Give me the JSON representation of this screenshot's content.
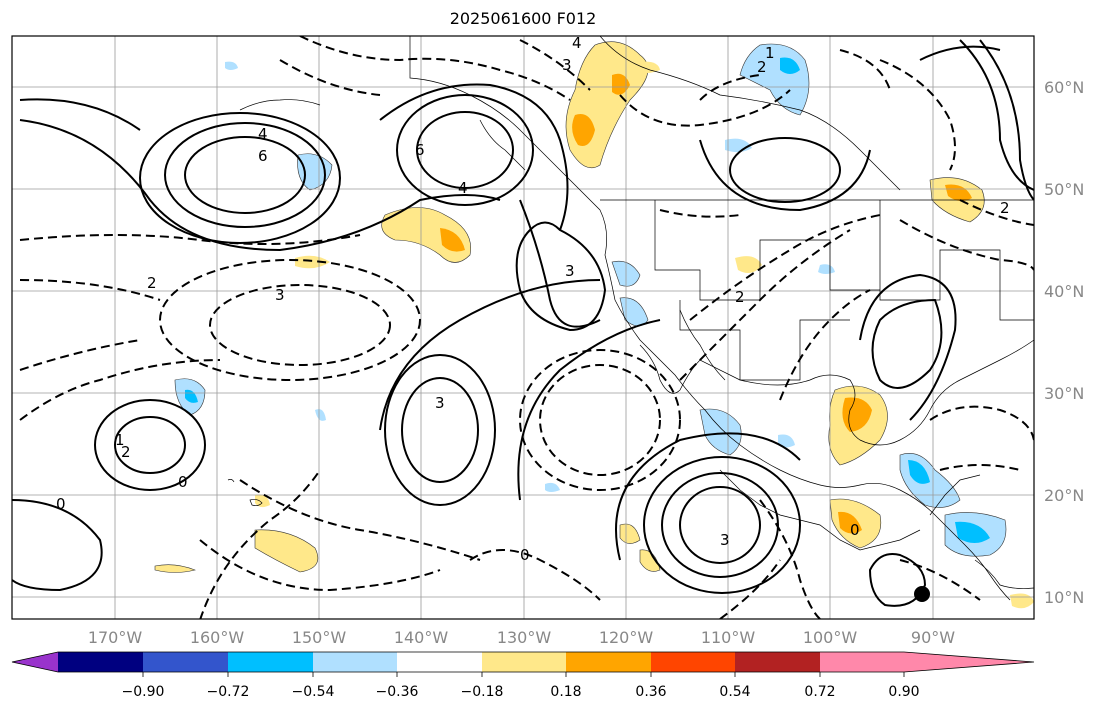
{
  "title": "2025061600 F012",
  "lon_ticks": [
    "170°W",
    "160°W",
    "150°W",
    "140°W",
    "130°W",
    "120°W",
    "110°W",
    "100°W",
    "90°W"
  ],
  "lat_ticks": [
    "60°N",
    "50°N",
    "40°N",
    "30°N",
    "20°N",
    "10°N"
  ],
  "colorbar": {
    "colors": [
      "#9933cc",
      "#000080",
      "#3355cc",
      "#00bfff",
      "#b0e0ff",
      "#ffffff",
      "#ffe88a",
      "#ffa500",
      "#ff4500",
      "#b22222",
      "#ff88aa"
    ],
    "labels": [
      "−0.90",
      "−0.72",
      "−0.54",
      "−0.36",
      "−0.18",
      "0.18",
      "0.36",
      "0.54",
      "0.72",
      "0.90"
    ]
  },
  "contour_labels": {
    "pos6_west": "6",
    "pos4_west": "4",
    "pos6_gulf": "6",
    "pos4_gulf": "4",
    "pos3_sw": "3",
    "pos3_central": "3",
    "pos2_hawaii": "2",
    "pos3_east": "3",
    "neg2_west": "2",
    "neg3_west": "3",
    "neg4_north": "4",
    "neg3_north": "3",
    "neg2_canada": "2",
    "neg2_us": "2",
    "neg2_atl": "2",
    "zero_w": "0",
    "zero_sw": "0",
    "zero_s": "0",
    "zero_gulf": "0",
    "one_hawaii": "1",
    "one_canada": "1"
  }
}
